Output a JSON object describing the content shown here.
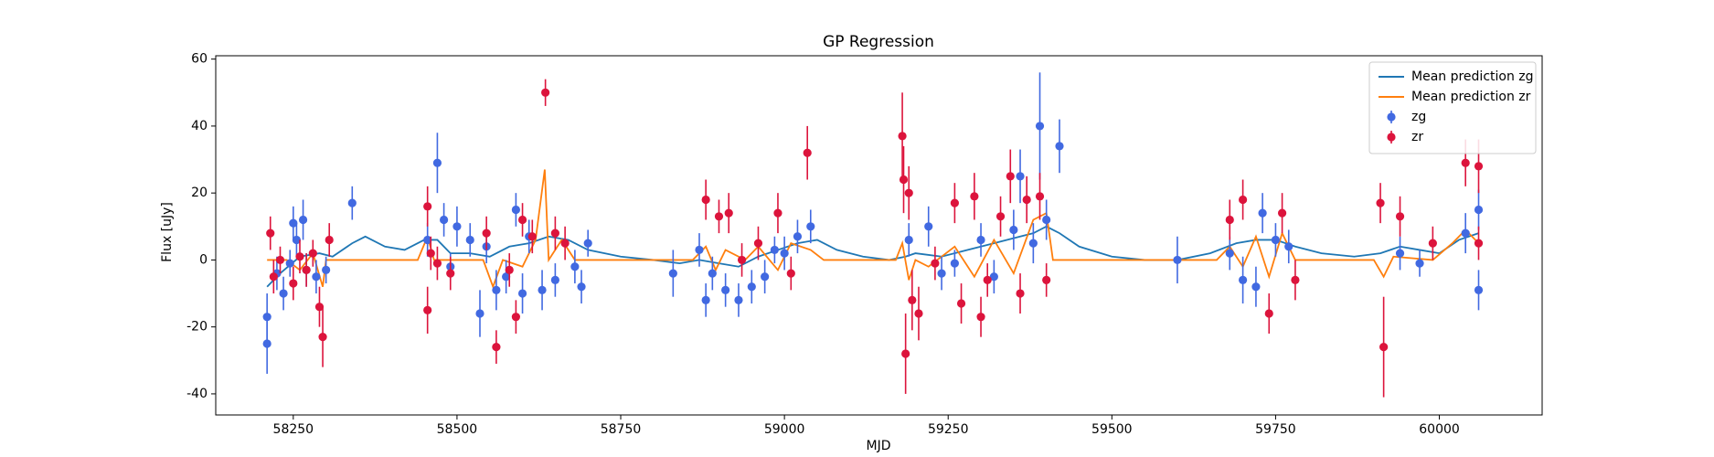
{
  "chart_data": {
    "type": "errorbar",
    "title": "GP Regression",
    "x_label": "MJD",
    "y_label": "Flux [uJy]",
    "xlim": [
      58131.6,
      60157
    ],
    "ylim": [
      -46.3,
      61
    ],
    "xticks": [
      58250,
      58500,
      58750,
      59000,
      59250,
      59500,
      59750,
      60000
    ],
    "yticks": [
      -40,
      -20,
      0,
      20,
      40,
      60
    ],
    "legend": "upper right",
    "series": [
      {
        "name": "Mean prediction zg",
        "type": "line",
        "color": "#1f77b4",
        "x": [
          58210,
          58230,
          58260,
          58290,
          58310,
          58340,
          58360,
          58390,
          58420,
          58450,
          58470,
          58490,
          58520,
          58550,
          58580,
          58610,
          58640,
          58670,
          58700,
          58750,
          58800,
          58840,
          58870,
          58900,
          58930,
          58960,
          58990,
          59020,
          59050,
          59080,
          59120,
          59160,
          59185,
          59200,
          59240,
          59280,
          59320,
          59360,
          59380,
          59400,
          59420,
          59450,
          59500,
          59550,
          59600,
          59650,
          59690,
          59720,
          59750,
          59780,
          59820,
          59870,
          59910,
          59940,
          59970,
          60000,
          60030,
          60060
        ],
        "values": [
          -8,
          -4,
          1,
          2,
          1,
          5,
          7,
          4,
          3,
          6,
          6,
          2,
          2,
          1,
          4,
          5,
          7,
          6,
          3,
          1,
          0,
          -1,
          0,
          -1,
          -2,
          1,
          3,
          5,
          6,
          3,
          1,
          0,
          1,
          2,
          1,
          3,
          5,
          7,
          8,
          10,
          8,
          4,
          1,
          0,
          0,
          2,
          5,
          6,
          6,
          4,
          2,
          1,
          2,
          4,
          3,
          2,
          6,
          8
        ]
      },
      {
        "name": "Mean prediction zr",
        "type": "line",
        "color": "#ff7f0e",
        "x": [
          58210,
          58240,
          58260,
          58280,
          58295,
          58300,
          58440,
          58455,
          58465,
          58540,
          58555,
          58570,
          58600,
          58620,
          58634,
          58640,
          58660,
          58680,
          58700,
          58860,
          58880,
          58895,
          58910,
          58940,
          58960,
          58990,
          59010,
          59040,
          59060,
          59170,
          59180,
          59190,
          59200,
          59220,
          59260,
          59290,
          59320,
          59350,
          59380,
          59400,
          59410,
          59440,
          59660,
          59680,
          59700,
          59720,
          59740,
          59760,
          59780,
          59900,
          59915,
          59930,
          59990,
          60020,
          60040,
          60060
        ],
        "values": [
          0,
          0,
          -3,
          2,
          -8,
          0,
          0,
          7,
          0,
          0,
          -8,
          0,
          -2,
          6,
          27,
          0,
          6,
          0,
          0,
          0,
          4,
          -3,
          3,
          0,
          4,
          -3,
          5,
          3,
          0,
          0,
          5,
          -6,
          0,
          -2,
          4,
          -5,
          6,
          -4,
          12,
          14,
          0,
          0,
          0,
          4,
          -2,
          7,
          -5,
          8,
          0,
          0,
          -5,
          1,
          0,
          5,
          9,
          5
        ]
      },
      {
        "name": "zg",
        "type": "errorbar",
        "color": "#4169e1",
        "x": [
          58210,
          58210,
          58225,
          58235,
          58245,
          58250,
          58255,
          58265,
          58270,
          58285,
          58300,
          58340,
          58455,
          58470,
          58480,
          58490,
          58500,
          58520,
          58535,
          58545,
          58560,
          58575,
          58590,
          58600,
          58610,
          58630,
          58650,
          58680,
          58690,
          58700,
          58830,
          58870,
          58880,
          58890,
          58910,
          58930,
          58950,
          58970,
          58985,
          59000,
          59020,
          59040,
          59190,
          59220,
          59240,
          59260,
          59300,
          59320,
          59350,
          59360,
          59380,
          59390,
          59400,
          59420,
          59600,
          59680,
          59700,
          59720,
          59730,
          59750,
          59770,
          59940,
          59970,
          60040,
          60060,
          60060
        ],
        "values": [
          -17,
          -25,
          -4,
          -10,
          -1,
          11,
          6,
          12,
          -3,
          -5,
          -3,
          17,
          6,
          29,
          12,
          -2,
          10,
          6,
          -16,
          4,
          -9,
          -5,
          15,
          -10,
          7,
          -9,
          -6,
          -2,
          -8,
          5,
          -4,
          3,
          -12,
          -4,
          -9,
          -12,
          -8,
          -5,
          3,
          2,
          7,
          10,
          6,
          10,
          -4,
          -1,
          6,
          -5,
          9,
          25,
          5,
          40,
          12,
          34,
          0,
          2,
          -6,
          -8,
          14,
          6,
          4,
          2,
          -1,
          8,
          15,
          -9
        ],
        "errors": [
          7,
          9,
          5,
          5,
          4,
          5,
          5,
          6,
          5,
          5,
          4,
          5,
          5,
          9,
          5,
          4,
          6,
          5,
          7,
          5,
          6,
          5,
          5,
          6,
          5,
          6,
          5,
          5,
          5,
          4,
          7,
          5,
          5,
          5,
          5,
          5,
          5,
          5,
          4,
          5,
          5,
          5,
          5,
          6,
          5,
          4,
          5,
          5,
          6,
          8,
          6,
          16,
          6,
          8,
          7,
          5,
          7,
          6,
          6,
          5,
          5,
          5,
          4,
          6,
          6,
          6
        ]
      },
      {
        "name": "zr",
        "type": "errorbar",
        "color": "#dc143c",
        "x": [
          58215,
          58220,
          58230,
          58250,
          58260,
          58270,
          58280,
          58290,
          58295,
          58305,
          58455,
          58455,
          58460,
          58470,
          58490,
          58545,
          58560,
          58580,
          58590,
          58600,
          58615,
          58635,
          58650,
          58665,
          58880,
          58900,
          58915,
          58935,
          58960,
          58990,
          59010,
          59035,
          59180,
          59182,
          59185,
          59190,
          59195,
          59205,
          59230,
          59260,
          59270,
          59290,
          59300,
          59310,
          59330,
          59345,
          59360,
          59370,
          59390,
          59400,
          59680,
          59700,
          59740,
          59760,
          59780,
          59910,
          59915,
          59940,
          59990,
          60040,
          60060,
          60060
        ],
        "values": [
          8,
          -5,
          0,
          -7,
          1,
          -3,
          2,
          -14,
          -23,
          6,
          16,
          -15,
          2,
          -1,
          -4,
          8,
          -26,
          -3,
          -17,
          12,
          7,
          50,
          8,
          5,
          18,
          13,
          14,
          0,
          5,
          14,
          -4,
          32,
          37,
          24,
          -28,
          20,
          -12,
          -16,
          -1,
          17,
          -13,
          19,
          -17,
          -6,
          13,
          25,
          -10,
          18,
          19,
          -6,
          12,
          18,
          -16,
          14,
          -6,
          17,
          -26,
          13,
          5,
          29,
          28,
          5
        ],
        "errors": [
          5,
          5,
          4,
          5,
          5,
          5,
          4,
          6,
          9,
          5,
          6,
          7,
          5,
          5,
          5,
          5,
          5,
          5,
          5,
          5,
          5,
          4,
          5,
          5,
          6,
          5,
          6,
          5,
          5,
          6,
          5,
          8,
          13,
          10,
          12,
          8,
          9,
          8,
          5,
          6,
          6,
          7,
          6,
          5,
          6,
          8,
          6,
          7,
          7,
          5,
          6,
          6,
          6,
          6,
          6,
          6,
          15,
          6,
          5,
          7,
          8,
          5
        ]
      }
    ]
  }
}
